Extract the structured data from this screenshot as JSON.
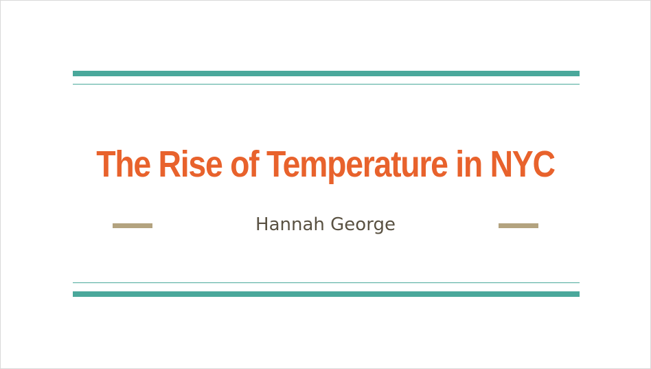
{
  "slide": {
    "title": "The Rise of Temperature in NYC",
    "subtitle": "Hannah George"
  },
  "colors": {
    "title": "#e8622c",
    "subtitle": "#595142",
    "teal_rule": "#4aa89b",
    "accent_dash": "#b3a37f"
  }
}
